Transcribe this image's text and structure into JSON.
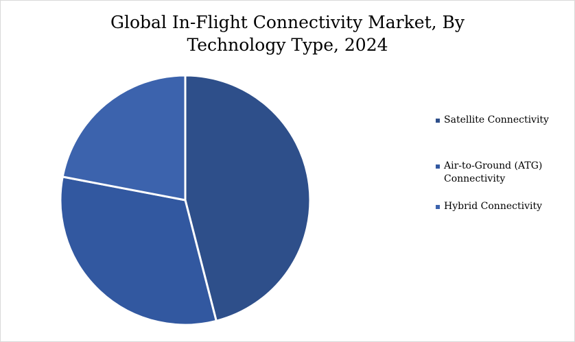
{
  "chart_data": {
    "type": "pie",
    "title": "Global In-Flight Connectivity Market, By Technology Type, 2024",
    "title_lines": [
      "Global In-Flight Connectivity Market, By",
      "Technology Type, 2024"
    ],
    "slices": [
      {
        "label": "Satellite Connectivity",
        "value": 46,
        "color": "#2e4f8a"
      },
      {
        "label": "Air-to-Ground (ATG) Connectivity",
        "value": 32,
        "color": "#3258a0"
      },
      {
        "label": "Hybrid Connectivity",
        "value": 22,
        "color": "#3c63ad"
      }
    ],
    "legend": {
      "position": "right",
      "entries": [
        {
          "lines": [
            "Satellite Connectivity"
          ]
        },
        {
          "lines": [
            "Air-to-Ground (ATG)",
            "Connectivity"
          ]
        },
        {
          "lines": [
            "Hybrid Connectivity"
          ]
        }
      ]
    },
    "start_angle": "12 o'clock",
    "direction": "clockwise"
  }
}
